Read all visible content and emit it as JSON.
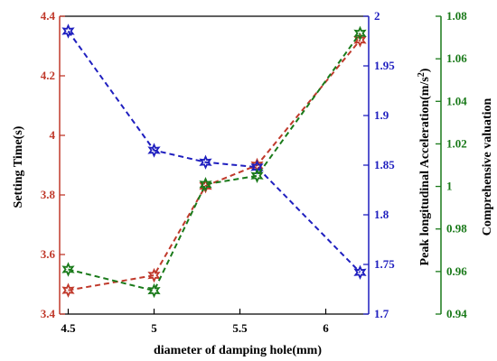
{
  "chart_data": {
    "type": "line",
    "title": "",
    "xlabel": "diameter of damping hole(mm)",
    "x_ticks": [
      "4.5",
      "5",
      "5.5",
      "6"
    ],
    "xlim": [
      4.45,
      6.25
    ],
    "grid": false,
    "axes": {
      "left": {
        "label": "Setting Time(s)",
        "ylim": [
          3.4,
          4.4
        ],
        "ticks": [
          "3.4",
          "3.6",
          "3.8",
          "4",
          "4.2",
          "4.4"
        ],
        "color": "#c0392b"
      },
      "right1": {
        "label_main": "Peak longitudinal Acceleration(m/s",
        "label_sup": "2",
        "label_tail": ")",
        "ylim": [
          1.7,
          2.0
        ],
        "ticks": [
          "1.7",
          "1.75",
          "1.8",
          "1.85",
          "1.9",
          "1.95",
          "2"
        ],
        "color": "#1f1fbf"
      },
      "right2": {
        "label": "Comprehensive valuation",
        "ylim": [
          0.94,
          1.08
        ],
        "ticks": [
          "0.94",
          "0.96",
          "0.98",
          "1",
          "1.02",
          "1.04",
          "1.06",
          "1.08"
        ],
        "color": "#1a7a1a"
      }
    },
    "series": [
      {
        "axis": "left",
        "color": "#c0392b",
        "marker": "star",
        "x": [
          4.5,
          5.0,
          5.3,
          5.6,
          6.2
        ],
        "y": [
          3.48,
          3.53,
          3.83,
          3.9,
          4.32
        ]
      },
      {
        "axis": "right1",
        "color": "#1f1fbf",
        "marker": "star",
        "x": [
          4.5,
          5.0,
          5.3,
          5.6,
          6.2
        ],
        "y": [
          1.985,
          1.865,
          1.853,
          1.848,
          1.742
        ]
      },
      {
        "axis": "right2",
        "color": "#1a7a1a",
        "marker": "star",
        "x": [
          4.5,
          5.0,
          5.3,
          5.6,
          6.2
        ],
        "y": [
          0.961,
          0.951,
          1.001,
          1.005,
          1.072
        ]
      }
    ]
  }
}
